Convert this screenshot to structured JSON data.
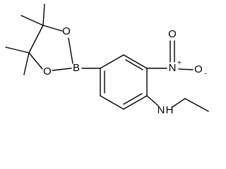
{
  "atoms": [
    {
      "label": "O"
    },
    {
      "label": "O"
    },
    {
      "label": "B"
    },
    {
      "label": "N",
      "charge": "+"
    },
    {
      "label": "O"
    },
    {
      "label": "O",
      "charge": "-"
    },
    {
      "label": "N",
      "hydrogen": "H"
    }
  ]
}
